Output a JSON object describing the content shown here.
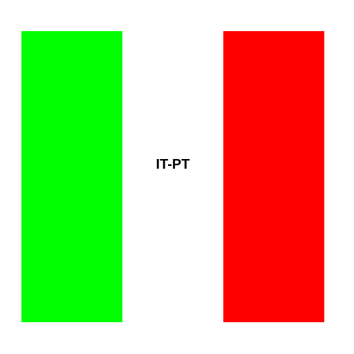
{
  "label": "IT-PT",
  "colors": {
    "left_stripe": "#00ff00",
    "right_stripe": "#ff0000",
    "background": "#ffffff",
    "text": "#000000"
  }
}
